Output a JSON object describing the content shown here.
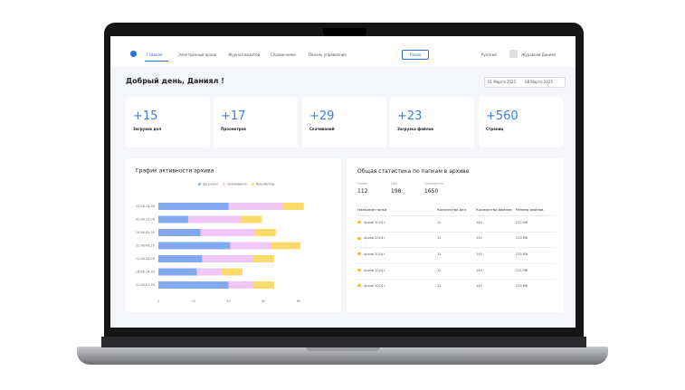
{
  "nav": {
    "items": [
      "Главная",
      "Электронный архив",
      "Журнал визитов",
      "Справочники",
      "Панель управления"
    ],
    "search": "Поиск",
    "language": "Русский",
    "user": "Журавлев Даниял"
  },
  "greeting": "Добрый день, Даниял !",
  "date_range": {
    "from": "01 Марта 2025",
    "to": "08 Марта 2025"
  },
  "stats": [
    {
      "value": "+15",
      "label": "Загрузки дел"
    },
    {
      "value": "+17",
      "label": "Просмотров"
    },
    {
      "value": "+29",
      "label": "Скачиваний"
    },
    {
      "value": "+23",
      "label": "Загрузка файлов"
    },
    {
      "value": "+560",
      "label": "Страниц"
    }
  ],
  "chart_data": {
    "type": "bar",
    "orientation": "horizontal",
    "stacked": true,
    "title": "График активности архива",
    "categories": [
      "23.08-14.30",
      "02.08-11.30",
      "19.08-09.30",
      "22.08-08.20",
      "12.08-21.00",
      "18.08-14.30",
      "21.08-07.30"
    ],
    "series": [
      {
        "name": "Загрузки",
        "color": "#82a8f0",
        "values": [
          40,
          17,
          24,
          41,
          25,
          22,
          40
        ]
      },
      {
        "name": "Скачивания",
        "color": "#f0c6f6",
        "values": [
          31,
          30,
          31,
          23,
          29,
          14,
          14
        ]
      },
      {
        "name": "Просмотры",
        "color": "#fbd96b",
        "values": [
          12,
          12,
          12,
          17,
          12,
          12,
          12
        ]
      }
    ],
    "xlim": [
      0,
      85
    ],
    "xticks": [
      0,
      20,
      40,
      60,
      80
    ]
  },
  "folder_stats": {
    "title": "Общая статистика по папкам в архиве",
    "summary": [
      {
        "label": "Папок",
        "value": 112
      },
      {
        "label": "Дел",
        "value": 198
      },
      {
        "label": "Документы",
        "value": 1650
      }
    ],
    "columns": [
      "Название папки",
      "Количество дел",
      "Количество файлов",
      "Размер файлов"
    ],
    "rows": [
      [
        "Архив 2024 г",
        12,
        145,
        "225 Мб"
      ],
      [
        "Архив 2024 г",
        12,
        145,
        "225 Мб"
      ],
      [
        "Архив 2024 г",
        12,
        145,
        "225 Мб"
      ],
      [
        "Архив 2024 г",
        12,
        145,
        "225 Мб"
      ],
      [
        "Архив 2024 г",
        12,
        145,
        "225 Мб"
      ]
    ]
  }
}
